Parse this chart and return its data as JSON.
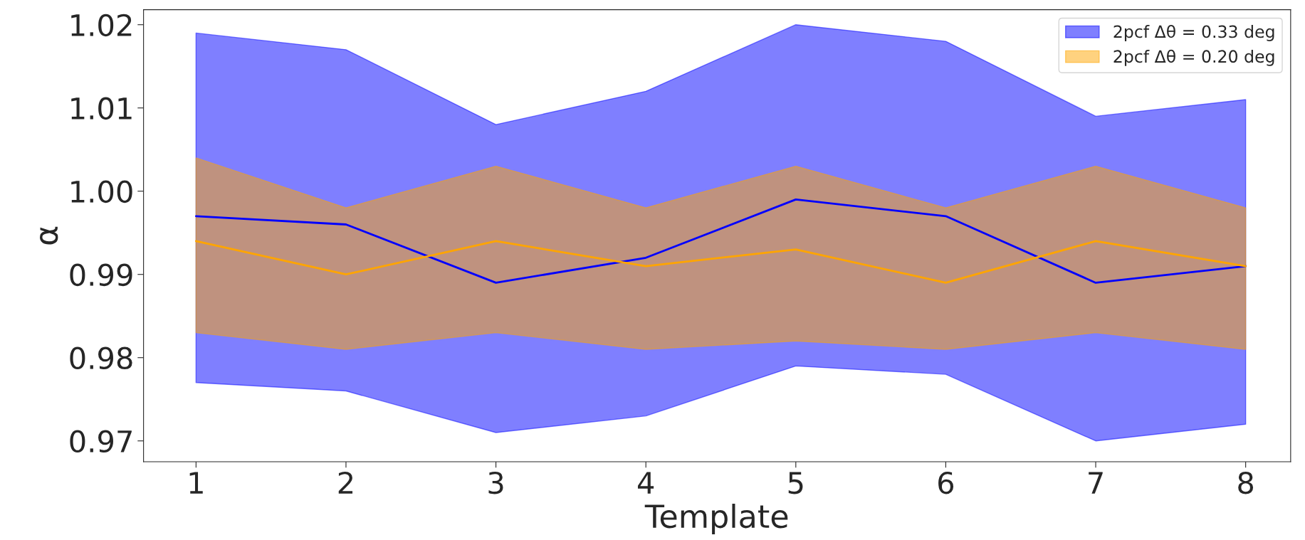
{
  "chart_data": {
    "type": "line",
    "xlabel": "Template",
    "ylabel": "α",
    "x": [
      1,
      2,
      3,
      4,
      5,
      6,
      7,
      8
    ],
    "series": [
      {
        "name": "2pcf Δθ = 0.33 deg",
        "color": "#0000ff",
        "values": [
          0.997,
          0.996,
          0.989,
          0.992,
          0.999,
          0.997,
          0.989,
          0.991
        ],
        "lower": [
          0.977,
          0.976,
          0.971,
          0.973,
          0.979,
          0.978,
          0.97,
          0.972
        ],
        "upper": [
          1.019,
          1.017,
          1.008,
          1.012,
          1.02,
          1.018,
          1.009,
          1.011
        ]
      },
      {
        "name": "2pcf Δθ = 0.20 deg",
        "color": "#ffa500",
        "values": [
          0.994,
          0.99,
          0.994,
          0.991,
          0.993,
          0.989,
          0.994,
          0.991
        ],
        "lower": [
          0.983,
          0.981,
          0.983,
          0.981,
          0.982,
          0.981,
          0.983,
          0.981
        ],
        "upper": [
          1.004,
          0.998,
          1.003,
          0.998,
          1.003,
          0.998,
          1.003,
          0.998
        ]
      }
    ],
    "xlim": [
      0.65,
      8.3
    ],
    "xticks": [
      1,
      2,
      3,
      4,
      5,
      6,
      7,
      8
    ],
    "ylim": [
      0.9675,
      1.0218
    ],
    "yticks": [
      0.97,
      0.98,
      0.99,
      {
        "value": 1.0,
        "label": "1.00"
      },
      1.01,
      1.02
    ],
    "grid": false,
    "legend": "top right",
    "line_style": "solid",
    "marker": "none"
  }
}
